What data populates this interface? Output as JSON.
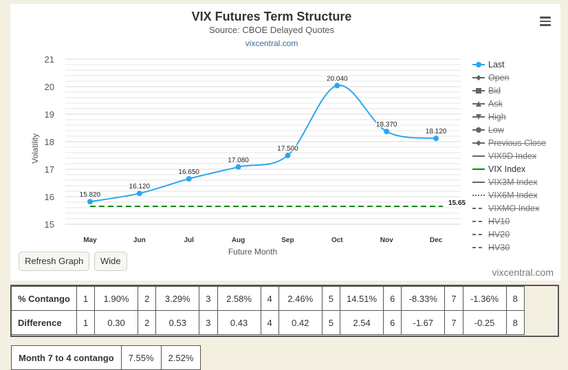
{
  "chart_data": {
    "type": "line",
    "title": "VIX Futures Term Structure",
    "subtitle": "Source: CBOE Delayed Quotes",
    "link": "vixcentral.com",
    "xlabel": "Future Month",
    "ylabel": "Volatility",
    "ylim": [
      15,
      21
    ],
    "yticks": [
      "15",
      "16",
      "17",
      "18",
      "19",
      "20",
      "21"
    ],
    "categories": [
      "May",
      "Jun",
      "Jul",
      "Aug",
      "Sep",
      "Oct",
      "Nov",
      "Dec"
    ],
    "series": [
      {
        "name": "Last",
        "color": "#2aa7f0",
        "values": [
          15.82,
          16.12,
          16.65,
          17.08,
          17.5,
          20.04,
          18.37,
          18.12
        ],
        "labels": [
          "15.820",
          "16.120",
          "16.650",
          "17.080",
          "17.500",
          "20.040",
          "18.370",
          "18.120"
        ]
      },
      {
        "name": "VIX Index",
        "color": "#128612",
        "style": "dashed",
        "value": 15.65,
        "label": "15.65"
      }
    ],
    "grid": true,
    "legend_position": "right"
  },
  "legend": [
    {
      "label": "Last",
      "symbol": "circle",
      "color": "#2aa7f0",
      "on": true
    },
    {
      "label": "Open",
      "symbol": "diamond",
      "color": "#666",
      "on": false
    },
    {
      "label": "Bid",
      "symbol": "square",
      "color": "#666",
      "on": false
    },
    {
      "label": "Ask",
      "symbol": "triangle",
      "color": "#666",
      "on": false
    },
    {
      "label": "High",
      "symbol": "triangle-down",
      "color": "#666",
      "on": false
    },
    {
      "label": "Low",
      "symbol": "circle",
      "color": "#666",
      "on": false
    },
    {
      "label": "Previous Close",
      "symbol": "diamond",
      "color": "#666",
      "on": false
    },
    {
      "label": "VIX9D Index",
      "symbol": "line",
      "color": "#666",
      "on": false
    },
    {
      "label": "VIX Index",
      "symbol": "line",
      "color": "#128612",
      "on": true
    },
    {
      "label": "VIX3M Index",
      "symbol": "line",
      "color": "#666",
      "on": false
    },
    {
      "label": "VIX6M Index",
      "symbol": "dotted",
      "color": "#666",
      "on": false
    },
    {
      "label": "VIXMO Index",
      "symbol": "dash",
      "color": "#666",
      "on": false
    },
    {
      "label": "HV10",
      "symbol": "dash",
      "color": "#666",
      "on": false
    },
    {
      "label": "HV20",
      "symbol": "dash",
      "color": "#666",
      "on": false
    },
    {
      "label": "HV30",
      "symbol": "dash",
      "color": "#666",
      "on": false
    }
  ],
  "buttons": {
    "refresh": "Refresh Graph",
    "wide": "Wide"
  },
  "credits": "vixcentral.com",
  "contango_table": {
    "rows": [
      {
        "header": "% Contango",
        "cells": [
          "1",
          "1.90%",
          "2",
          "3.29%",
          "3",
          "2.58%",
          "4",
          "2.46%",
          "5",
          "14.51%",
          "6",
          "-8.33%",
          "7",
          "-1.36%",
          "8"
        ]
      },
      {
        "header": "Difference",
        "cells": [
          "1",
          "0.30",
          "2",
          "0.53",
          "3",
          "0.43",
          "4",
          "0.42",
          "5",
          "2.54",
          "6",
          "-1.67",
          "7",
          "-0.25",
          "8"
        ]
      }
    ]
  },
  "month_table": {
    "header": "Month 7 to 4 contango",
    "cells": [
      "7.55%",
      "2.52%"
    ]
  }
}
